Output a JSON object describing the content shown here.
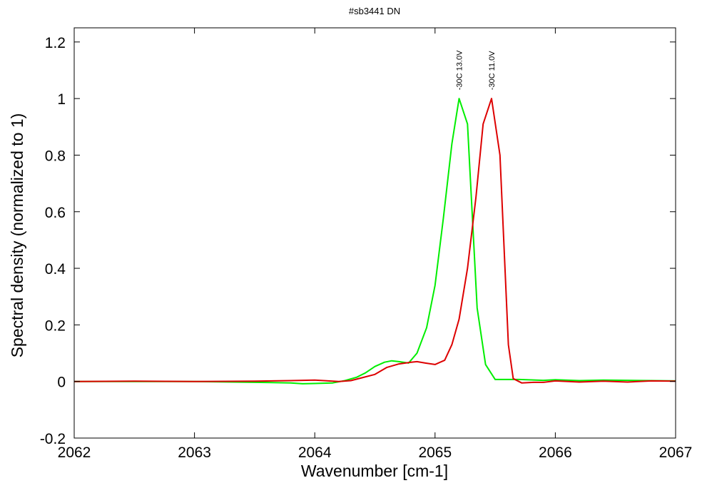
{
  "chart_data": {
    "type": "line",
    "title": "#sb3441 DN",
    "xlabel": "Wavenumber [cm-1]",
    "ylabel": "Spectral density (normalized to 1)",
    "xlim": [
      2062,
      2067
    ],
    "ylim": [
      -0.2,
      1.25
    ],
    "x_ticks": [
      2062,
      2063,
      2064,
      2065,
      2066,
      2067
    ],
    "y_ticks": [
      -0.2,
      0,
      0.2,
      0.4,
      0.6,
      0.8,
      1,
      1.2
    ],
    "x_tick_labels": [
      "2062",
      "2063",
      "2064",
      "2065",
      "2066",
      "2067"
    ],
    "y_tick_labels": [
      "-0.2",
      "0",
      "0.2",
      "0.4",
      "0.6",
      "0.8",
      "1",
      "1.2"
    ],
    "grid": false,
    "series": [
      {
        "color": "#00ee00",
        "x": [
          2062.0,
          2062.5,
          2063.0,
          2063.5,
          2063.8,
          2063.9,
          2064.0,
          2064.15,
          2064.25,
          2064.35,
          2064.42,
          2064.5,
          2064.58,
          2064.64,
          2064.7,
          2064.78,
          2064.85,
          2064.93,
          2065.0,
          2065.07,
          2065.14,
          2065.2,
          2065.27,
          2065.35,
          2065.42,
          2065.5,
          2065.6,
          2065.7,
          2065.9,
          2066.0,
          2066.2,
          2066.4,
          2066.6,
          2067.0
        ],
        "y": [
          0.0,
          0.0,
          0.0,
          -0.003,
          -0.005,
          -0.008,
          -0.007,
          -0.005,
          0.003,
          0.015,
          0.03,
          0.053,
          0.068,
          0.073,
          0.07,
          0.065,
          0.1,
          0.19,
          0.34,
          0.58,
          0.84,
          1.0,
          0.91,
          0.26,
          0.06,
          0.007,
          0.007,
          0.007,
          0.004,
          0.006,
          0.003,
          0.005,
          0.004,
          0.002
        ]
      },
      {
        "color": "#dd0000",
        "x": [
          2062.0,
          2062.5,
          2063.0,
          2063.5,
          2063.8,
          2064.0,
          2064.2,
          2064.3,
          2064.5,
          2064.6,
          2064.7,
          2064.8,
          2064.85,
          2064.92,
          2065.0,
          2065.08,
          2065.14,
          2065.2,
          2065.27,
          2065.34,
          2065.4,
          2065.47,
          2065.54,
          2065.61,
          2065.65,
          2065.72,
          2065.82,
          2065.9,
          2066.0,
          2066.2,
          2066.4,
          2066.6,
          2066.8,
          2067.0
        ],
        "y": [
          0.0,
          0.001,
          0.0,
          0.001,
          0.003,
          0.005,
          0.0,
          0.003,
          0.025,
          0.05,
          0.062,
          0.068,
          0.07,
          0.065,
          0.06,
          0.075,
          0.13,
          0.22,
          0.4,
          0.65,
          0.91,
          1.0,
          0.8,
          0.13,
          0.01,
          -0.005,
          -0.003,
          -0.003,
          0.002,
          -0.002,
          0.001,
          -0.002,
          0.002,
          0.001
        ]
      }
    ],
    "annotations": [
      {
        "text": "-30C 13.0V",
        "x": 2065.2,
        "y": 1.03,
        "rotation": -90
      },
      {
        "text": "-30C 11.0V",
        "x": 2065.47,
        "y": 1.03,
        "rotation": -90
      }
    ]
  }
}
